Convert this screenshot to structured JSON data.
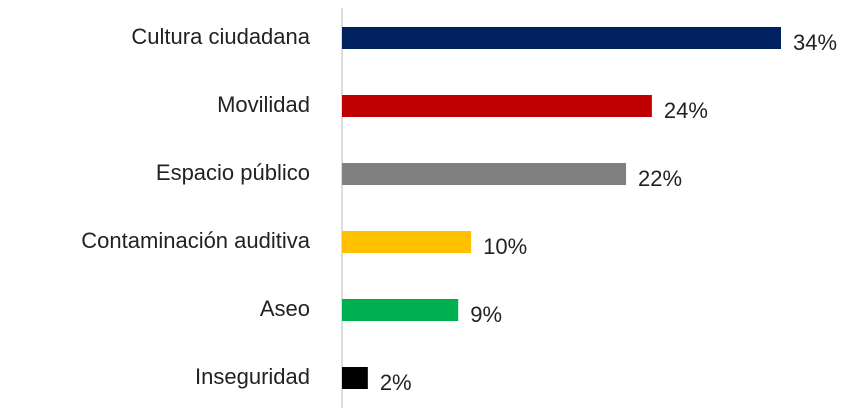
{
  "chart_data": {
    "type": "bar",
    "orientation": "horizontal",
    "categories": [
      "Cultura ciudadana",
      "Movilidad",
      "Espacio público",
      "Contaminación auditiva",
      "Aseo",
      "Inseguridad"
    ],
    "values": [
      34,
      24,
      22,
      10,
      9,
      2
    ],
    "value_labels": [
      "34%",
      "24%",
      "22%",
      "10%",
      "9%",
      "2%"
    ],
    "colors": [
      "#002060",
      "#c00000",
      "#808080",
      "#ffc000",
      "#00b050",
      "#000000"
    ]
  }
}
